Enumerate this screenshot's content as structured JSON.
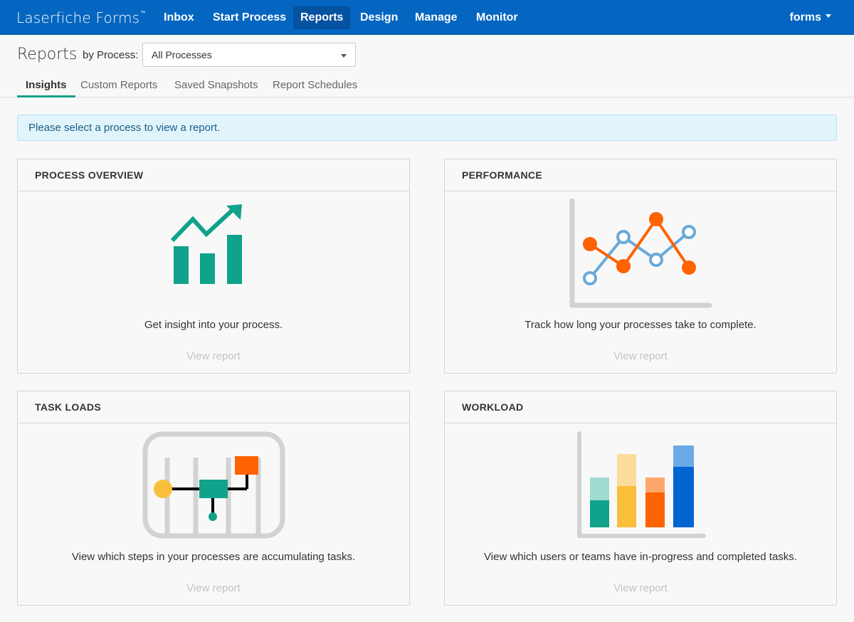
{
  "app": {
    "brand": "Laserfiche Forms",
    "trademark": "™"
  },
  "nav": {
    "items": [
      {
        "label": "Inbox",
        "active": false
      },
      {
        "label": "Start Process",
        "active": false
      },
      {
        "label": "Reports",
        "active": true
      },
      {
        "label": "Design",
        "active": false
      },
      {
        "label": "Manage",
        "active": false
      },
      {
        "label": "Monitor",
        "active": false
      }
    ],
    "user": "forms"
  },
  "header": {
    "title": "Reports",
    "process_label": "by Process:",
    "process_value": "All Processes"
  },
  "tabs": [
    {
      "label": "Insights",
      "active": true
    },
    {
      "label": "Custom Reports",
      "active": false
    },
    {
      "label": "Saved Snapshots",
      "active": false
    },
    {
      "label": "Report Schedules",
      "active": false
    }
  ],
  "alert": {
    "text": "Please select a process to view a report."
  },
  "cards": [
    {
      "title": "PROCESS OVERVIEW",
      "description": "Get insight into your process.",
      "link": "View report",
      "icon": "trend-bar-chart-icon"
    },
    {
      "title": "PERFORMANCE",
      "description": "Track how long your processes take to complete.",
      "link": "View report",
      "icon": "line-chart-icon"
    },
    {
      "title": "TASK LOADS",
      "description": "View which steps in your processes are accumulating tasks.",
      "link": "View report",
      "icon": "process-flow-icon"
    },
    {
      "title": "WORKLOAD",
      "description": "View which users or teams have in-progress and completed tasks.",
      "link": "View report",
      "icon": "stacked-bar-chart-icon"
    }
  ],
  "colors": {
    "brand_bar": "#0466c0",
    "accent_teal": "#10a28a",
    "orange": "#ff6200",
    "blue_light": "#6aaad9",
    "yellow": "#f9bf3b",
    "blue": "#0065d0",
    "grey": "#d2d2d2"
  }
}
